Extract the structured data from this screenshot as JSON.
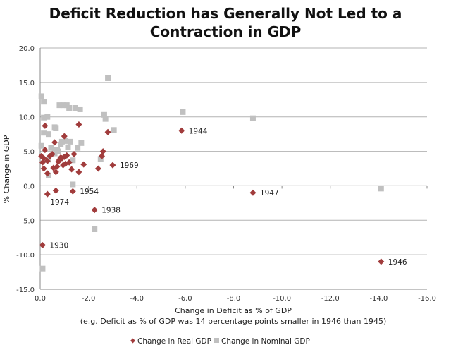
{
  "chart_data": {
    "type": "scatter",
    "title_line1": "Deficit Reduction has Generally Not Led to a",
    "title_line2": "Contraction in GDP",
    "xlabel": "Change in Deficit  as % of GDP",
    "xlabel_note": "(e.g. Deficit as % of GDP was 14 percentage points smaller in 1946 than 1945)",
    "ylabel": "% Change in GDP",
    "xlim": [
      0,
      -16
    ],
    "ylim": [
      -15,
      20
    ],
    "xticks": [
      "0.0",
      "-2.0",
      "-4.0",
      "-6.0",
      "-8.0",
      "-10.0",
      "-12.0",
      "-14.0",
      "-16.0"
    ],
    "xtick_values": [
      0,
      -2,
      -4,
      -6,
      -8,
      -10,
      -12,
      -14,
      -16
    ],
    "yticks": [
      "20.0",
      "15.0",
      "10.0",
      "5.0",
      "0.0",
      "-5.0",
      "-10.0",
      "-15.0"
    ],
    "ytick_values": [
      20,
      15,
      10,
      5,
      0,
      -5,
      -10,
      -15
    ],
    "grid": "horizontal",
    "legend_position": "bottom",
    "colors": {
      "real": "#a13c3c",
      "nominal": "#c0c0c0",
      "grid": "#b3b3b3",
      "axis": "#888888"
    },
    "series": [
      {
        "name": "Change in Real GDP",
        "marker": "diamond",
        "points": [
          [
            -0.1,
            -8.6,
            "1930"
          ],
          [
            -0.3,
            -1.2,
            "1974"
          ],
          [
            -0.65,
            -0.7,
            ""
          ],
          [
            -1.35,
            -0.8,
            "1954"
          ],
          [
            -2.25,
            -3.5,
            "1938"
          ],
          [
            -5.85,
            8.0,
            "1944"
          ],
          [
            -8.8,
            -1.0,
            "1947"
          ],
          [
            -14.1,
            -11.0,
            "1946"
          ],
          [
            -3.0,
            3.0,
            "1969"
          ],
          [
            -0.2,
            8.7,
            ""
          ],
          [
            -1.6,
            8.9,
            ""
          ],
          [
            -2.8,
            7.8,
            ""
          ],
          [
            -2.6,
            5.0,
            ""
          ],
          [
            -2.55,
            4.3,
            ""
          ],
          [
            -2.4,
            2.5,
            ""
          ],
          [
            -1.8,
            3.1,
            ""
          ],
          [
            -1.6,
            2.0,
            ""
          ],
          [
            -1.3,
            2.4,
            ""
          ],
          [
            -1.0,
            7.2,
            ""
          ],
          [
            -1.4,
            4.6,
            ""
          ],
          [
            -0.1,
            3.4,
            ""
          ],
          [
            -0.15,
            4.0,
            ""
          ],
          [
            -0.2,
            5.2,
            ""
          ],
          [
            -0.15,
            2.5,
            ""
          ],
          [
            -0.3,
            1.8,
            ""
          ],
          [
            -0.4,
            4.3,
            ""
          ],
          [
            -0.5,
            4.6,
            ""
          ],
          [
            -0.6,
            6.3,
            ""
          ],
          [
            -0.55,
            2.6,
            ""
          ],
          [
            -0.65,
            2.0,
            ""
          ],
          [
            -0.7,
            2.8,
            ""
          ],
          [
            -0.75,
            3.5,
            ""
          ],
          [
            -0.8,
            3.8,
            ""
          ],
          [
            -0.9,
            4.0,
            ""
          ],
          [
            -1.0,
            4.2,
            ""
          ],
          [
            -1.1,
            4.4,
            ""
          ],
          [
            -0.95,
            3.0,
            ""
          ],
          [
            -1.05,
            3.2,
            ""
          ],
          [
            -0.85,
            4.1,
            ""
          ],
          [
            -1.2,
            3.4,
            ""
          ],
          [
            -0.3,
            3.6,
            ""
          ],
          [
            -0.05,
            4.3,
            ""
          ]
        ]
      },
      {
        "name": "Change in Nominal GDP",
        "marker": "square",
        "points": [
          [
            -2.8,
            15.6
          ],
          [
            -0.05,
            13.0
          ],
          [
            -0.15,
            12.2
          ],
          [
            -0.8,
            11.7
          ],
          [
            -0.95,
            11.7
          ],
          [
            -1.1,
            11.7
          ],
          [
            -1.2,
            11.3
          ],
          [
            -1.45,
            11.3
          ],
          [
            -1.65,
            11.1
          ],
          [
            -2.65,
            10.3
          ],
          [
            -2.7,
            9.7
          ],
          [
            -5.9,
            10.7
          ],
          [
            -8.8,
            9.8
          ],
          [
            -0.15,
            9.9
          ],
          [
            -0.3,
            10.0
          ],
          [
            -0.6,
            8.5
          ],
          [
            -0.65,
            8.4
          ],
          [
            -3.05,
            8.1
          ],
          [
            -0.15,
            7.7
          ],
          [
            -0.35,
            7.5
          ],
          [
            -1.7,
            6.2
          ],
          [
            -0.9,
            6.4
          ],
          [
            -1.05,
            6.5
          ],
          [
            -1.25,
            6.4
          ],
          [
            -0.85,
            6.0
          ],
          [
            -1.15,
            5.6
          ],
          [
            -1.55,
            5.5
          ],
          [
            -0.05,
            5.8
          ],
          [
            -0.45,
            5.5
          ],
          [
            -0.7,
            5.2
          ],
          [
            -0.6,
            4.7
          ],
          [
            -0.75,
            5.0
          ],
          [
            -1.35,
            3.7
          ],
          [
            -2.5,
            3.9
          ],
          [
            -0.35,
            3.8
          ],
          [
            -0.35,
            1.5
          ],
          [
            -1.35,
            0.2
          ],
          [
            -2.25,
            -6.3
          ],
          [
            -0.1,
            -12.0
          ],
          [
            -14.1,
            -0.4
          ]
        ]
      }
    ]
  }
}
